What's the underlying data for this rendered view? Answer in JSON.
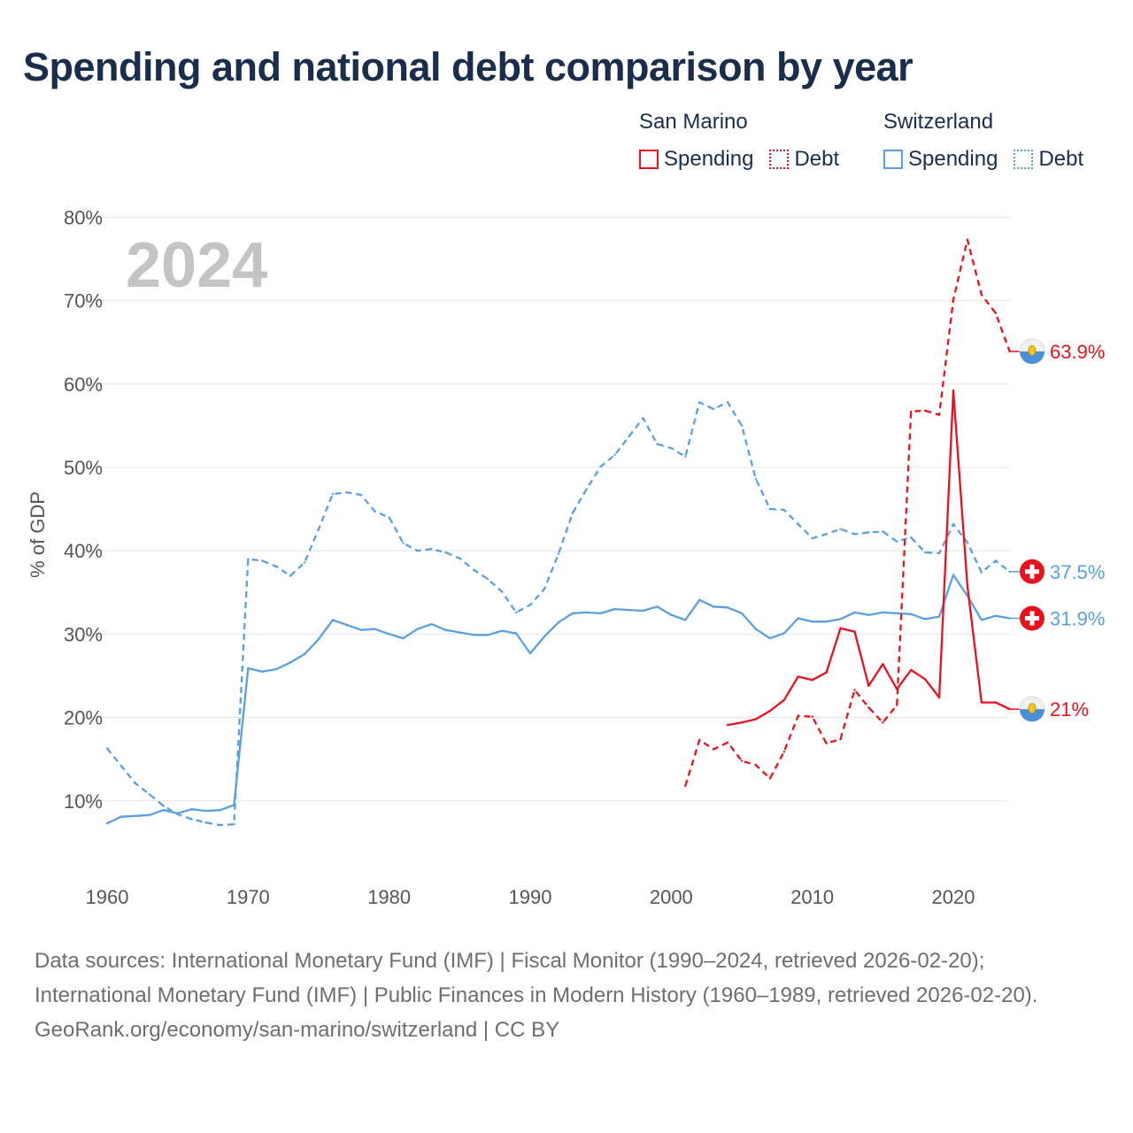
{
  "title": "Spending and national debt comparison by year",
  "year_watermark": "2024",
  "legend": {
    "san_marino": {
      "country": "San Marino",
      "spending": "Spending",
      "debt": "Debt"
    },
    "switzerland": {
      "country": "Switzerland",
      "spending": "Spending",
      "debt": "Debt"
    }
  },
  "footer": {
    "sources": "Data sources: International Monetary Fund (IMF) | Fiscal Monitor (1990–2024, retrieved 2026-02-20); International Monetary Fund (IMF) | Public Finances in Modern History (1960–1989, retrieved 2026-02-20).",
    "credit": "GeoRank.org/economy/san-marino/switzerland | CC BY"
  },
  "colors": {
    "san_marino": "#e8111e",
    "switzerland": "#5a9fe0",
    "title": "#1a2e4c"
  },
  "chart_data": {
    "type": "line",
    "title": "Spending and national debt comparison by year",
    "xlabel": "",
    "ylabel": "% of GDP",
    "xlim": [
      1960,
      2024
    ],
    "ylim": [
      0,
      80
    ],
    "x_ticks": [
      1960,
      1970,
      1980,
      1990,
      2000,
      2010,
      2020
    ],
    "y_ticks": [
      10,
      20,
      30,
      40,
      50,
      60,
      70,
      80
    ],
    "y_tick_labels": [
      "10%",
      "20%",
      "30%",
      "40%",
      "50%",
      "60%",
      "70%",
      "80%"
    ],
    "grid": true,
    "series": [
      {
        "name": "Switzerland Debt",
        "country": "Switzerland",
        "measure": "Debt",
        "style": "dashed",
        "color": "#5a9fe0",
        "end_label": "37.5%",
        "points": [
          [
            1960,
            16.3
          ],
          [
            1961,
            14.2
          ],
          [
            1962,
            12.1
          ],
          [
            1963,
            10.8
          ],
          [
            1964,
            9.4
          ],
          [
            1965,
            8.4
          ],
          [
            1966,
            7.8
          ],
          [
            1967,
            7.4
          ],
          [
            1968,
            7.1
          ],
          [
            1969,
            7.2
          ],
          [
            1970,
            39.0
          ],
          [
            1971,
            38.8
          ],
          [
            1972,
            38.1
          ],
          [
            1973,
            37.0
          ],
          [
            1974,
            38.6
          ],
          [
            1975,
            42.6
          ],
          [
            1976,
            46.8
          ],
          [
            1977,
            47.0
          ],
          [
            1978,
            46.7
          ],
          [
            1979,
            44.7
          ],
          [
            1980,
            44.0
          ],
          [
            1981,
            40.9
          ],
          [
            1982,
            40.0
          ],
          [
            1983,
            40.2
          ],
          [
            1984,
            39.8
          ],
          [
            1985,
            39.1
          ],
          [
            1986,
            37.7
          ],
          [
            1987,
            36.6
          ],
          [
            1988,
            35.1
          ],
          [
            1989,
            32.6
          ],
          [
            1990,
            33.5
          ],
          [
            1991,
            35.4
          ],
          [
            1992,
            39.6
          ],
          [
            1993,
            44.5
          ],
          [
            1994,
            47.4
          ],
          [
            1995,
            50.1
          ],
          [
            1996,
            51.5
          ],
          [
            1997,
            53.7
          ],
          [
            1998,
            55.9
          ],
          [
            1999,
            52.8
          ],
          [
            2000,
            52.3
          ],
          [
            2001,
            51.3
          ],
          [
            2002,
            57.8
          ],
          [
            2003,
            57.0
          ],
          [
            2004,
            57.8
          ],
          [
            2005,
            55.0
          ],
          [
            2006,
            48.6
          ],
          [
            2007,
            45.0
          ],
          [
            2008,
            44.9
          ],
          [
            2009,
            43.2
          ],
          [
            2010,
            41.5
          ],
          [
            2011,
            42.0
          ],
          [
            2012,
            42.6
          ],
          [
            2013,
            42.0
          ],
          [
            2014,
            42.2
          ],
          [
            2015,
            42.3
          ],
          [
            2016,
            41.1
          ],
          [
            2017,
            41.6
          ],
          [
            2018,
            39.8
          ],
          [
            2019,
            39.7
          ],
          [
            2020,
            43.2
          ],
          [
            2021,
            41.0
          ],
          [
            2022,
            37.4
          ],
          [
            2023,
            38.8
          ],
          [
            2024,
            37.5
          ]
        ]
      },
      {
        "name": "Switzerland Spending",
        "country": "Switzerland",
        "measure": "Spending",
        "style": "solid",
        "color": "#5a9fe0",
        "end_label": "31.9%",
        "points": [
          [
            1960,
            7.3
          ],
          [
            1961,
            8.1
          ],
          [
            1962,
            8.2
          ],
          [
            1963,
            8.3
          ],
          [
            1964,
            8.9
          ],
          [
            1965,
            8.5
          ],
          [
            1966,
            9.0
          ],
          [
            1967,
            8.8
          ],
          [
            1968,
            8.9
          ],
          [
            1969,
            9.5
          ],
          [
            1970,
            25.9
          ],
          [
            1971,
            25.5
          ],
          [
            1972,
            25.8
          ],
          [
            1973,
            26.6
          ],
          [
            1974,
            27.6
          ],
          [
            1975,
            29.4
          ],
          [
            1976,
            31.7
          ],
          [
            1977,
            31.1
          ],
          [
            1978,
            30.5
          ],
          [
            1979,
            30.6
          ],
          [
            1980,
            30.0
          ],
          [
            1981,
            29.5
          ],
          [
            1982,
            30.6
          ],
          [
            1983,
            31.2
          ],
          [
            1984,
            30.5
          ],
          [
            1985,
            30.2
          ],
          [
            1986,
            29.9
          ],
          [
            1987,
            29.9
          ],
          [
            1988,
            30.4
          ],
          [
            1989,
            30.1
          ],
          [
            1990,
            27.7
          ],
          [
            1991,
            29.7
          ],
          [
            1992,
            31.4
          ],
          [
            1993,
            32.5
          ],
          [
            1994,
            32.6
          ],
          [
            1995,
            32.5
          ],
          [
            1996,
            33.0
          ],
          [
            1997,
            32.9
          ],
          [
            1998,
            32.8
          ],
          [
            1999,
            33.3
          ],
          [
            2000,
            32.3
          ],
          [
            2001,
            31.7
          ],
          [
            2002,
            34.1
          ],
          [
            2003,
            33.3
          ],
          [
            2004,
            33.2
          ],
          [
            2005,
            32.5
          ],
          [
            2006,
            30.6
          ],
          [
            2007,
            29.5
          ],
          [
            2008,
            30.1
          ],
          [
            2009,
            31.9
          ],
          [
            2010,
            31.5
          ],
          [
            2011,
            31.5
          ],
          [
            2012,
            31.8
          ],
          [
            2013,
            32.6
          ],
          [
            2014,
            32.3
          ],
          [
            2015,
            32.6
          ],
          [
            2016,
            32.5
          ],
          [
            2017,
            32.4
          ],
          [
            2018,
            31.8
          ],
          [
            2019,
            32.1
          ],
          [
            2020,
            37.1
          ],
          [
            2021,
            34.6
          ],
          [
            2022,
            31.7
          ],
          [
            2023,
            32.2
          ],
          [
            2024,
            31.9
          ]
        ]
      },
      {
        "name": "San Marino Debt",
        "country": "San Marino",
        "measure": "Debt",
        "style": "dashed",
        "color": "#e8111e",
        "end_label": "63.9%",
        "points": [
          [
            2001,
            11.8
          ],
          [
            2002,
            17.3
          ],
          [
            2003,
            16.2
          ],
          [
            2004,
            17.0
          ],
          [
            2005,
            14.8
          ],
          [
            2006,
            14.3
          ],
          [
            2007,
            12.7
          ],
          [
            2008,
            15.9
          ],
          [
            2009,
            20.2
          ],
          [
            2010,
            20.1
          ],
          [
            2011,
            16.9
          ],
          [
            2012,
            17.4
          ],
          [
            2013,
            23.3
          ],
          [
            2014,
            21.2
          ],
          [
            2015,
            19.4
          ],
          [
            2016,
            21.5
          ],
          [
            2017,
            56.7
          ],
          [
            2018,
            56.8
          ],
          [
            2019,
            56.3
          ],
          [
            2020,
            70.1
          ],
          [
            2021,
            77.3
          ],
          [
            2022,
            70.7
          ],
          [
            2023,
            68.5
          ],
          [
            2024,
            63.9
          ]
        ]
      },
      {
        "name": "San Marino Spending",
        "country": "San Marino",
        "measure": "Spending",
        "style": "solid",
        "color": "#e8111e",
        "end_label": "21%",
        "points": [
          [
            2004,
            19.1
          ],
          [
            2005,
            19.4
          ],
          [
            2006,
            19.8
          ],
          [
            2007,
            20.8
          ],
          [
            2008,
            22.1
          ],
          [
            2009,
            24.9
          ],
          [
            2010,
            24.5
          ],
          [
            2011,
            25.4
          ],
          [
            2012,
            30.7
          ],
          [
            2013,
            30.3
          ],
          [
            2014,
            23.8
          ],
          [
            2015,
            26.4
          ],
          [
            2016,
            23.4
          ],
          [
            2017,
            25.7
          ],
          [
            2018,
            24.6
          ],
          [
            2019,
            22.4
          ],
          [
            2020,
            59.2
          ],
          [
            2021,
            35.8
          ],
          [
            2022,
            21.8
          ],
          [
            2023,
            21.8
          ],
          [
            2024,
            21.0
          ]
        ]
      }
    ]
  }
}
